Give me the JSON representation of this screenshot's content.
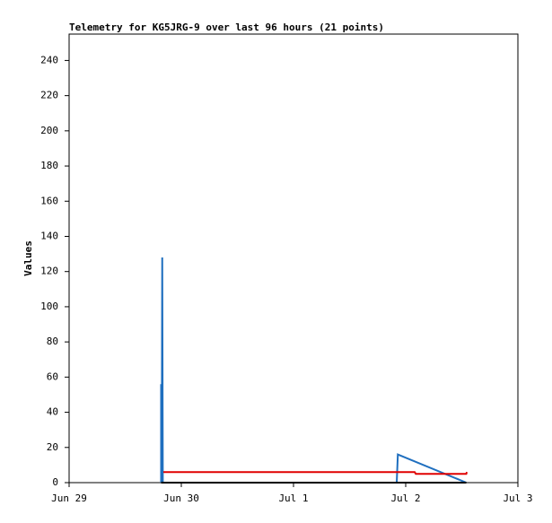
{
  "chart_data": {
    "type": "line",
    "title": "Telemetry for KG5JRG-9 over last 96 hours (21 points)",
    "y_label": "Values",
    "xlim": [
      0,
      4
    ],
    "ylim": [
      0,
      255
    ],
    "xticks": [
      {
        "value": 0,
        "label": "Jun 29"
      },
      {
        "value": 1,
        "label": "Jun 30"
      },
      {
        "value": 2,
        "label": "Jul 1"
      },
      {
        "value": 3,
        "label": "Jul 2"
      },
      {
        "value": 4,
        "label": "Jul 3"
      }
    ],
    "yticks": [
      0,
      20,
      40,
      60,
      80,
      100,
      120,
      140,
      160,
      180,
      200,
      220,
      240
    ],
    "series": [
      {
        "color": "#1f6fbf",
        "x": [
          0.82,
          0.82,
          0.825,
          0.83,
          0.835,
          2.92,
          2.93,
          3.54
        ],
        "values": [
          0,
          56,
          0,
          128,
          0,
          0,
          16,
          0
        ]
      },
      {
        "color": "#e00000",
        "x": [
          0.84,
          2.95,
          3.08,
          3.09,
          3.54,
          3.545
        ],
        "values": [
          6,
          6,
          6,
          5,
          5,
          6
        ]
      },
      {
        "color": "#000000",
        "x": [
          0.82,
          3.54
        ],
        "values": [
          0,
          0
        ]
      }
    ]
  }
}
